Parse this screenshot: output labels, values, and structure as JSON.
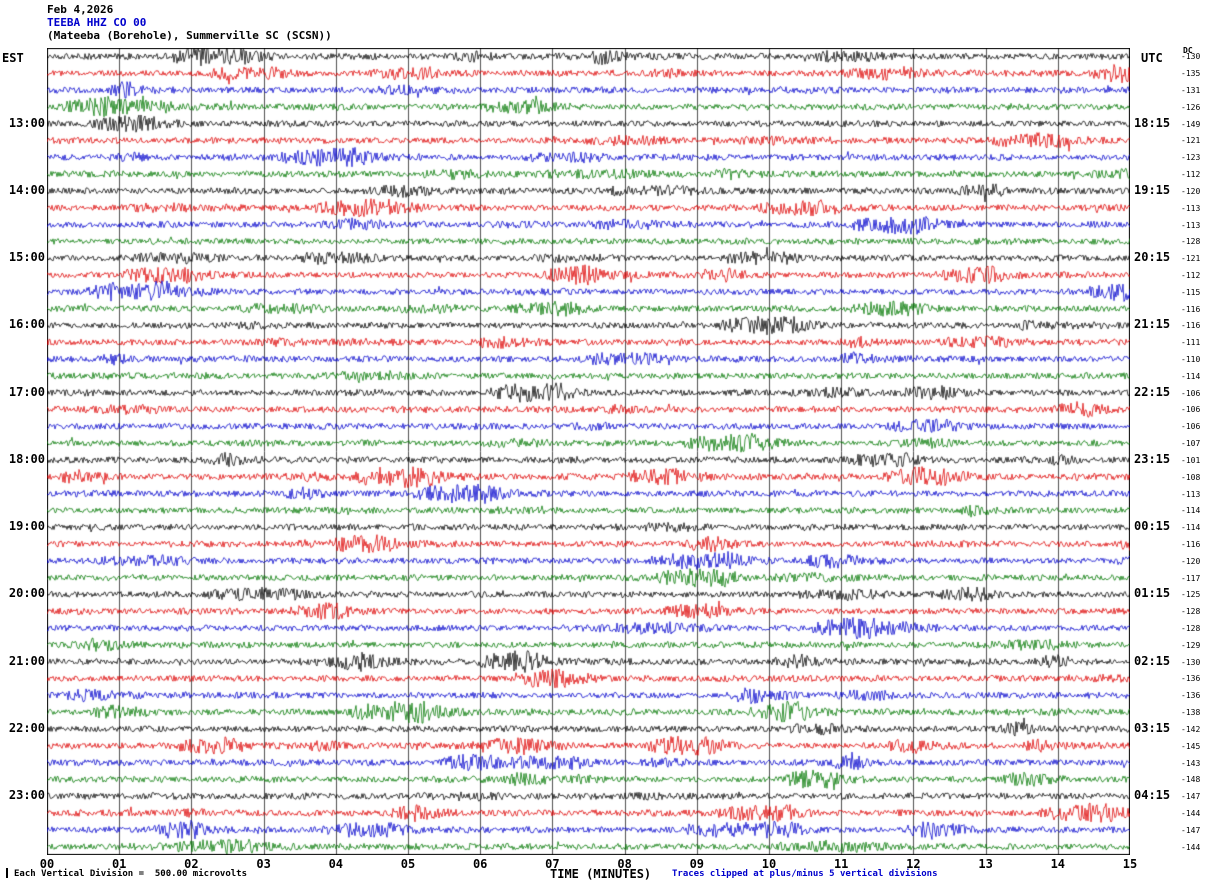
{
  "header": {
    "date": "Feb 4,2026",
    "station_code": "TEEBA HHZ CO 00",
    "station_desc": "(Mateeba (Borehole), Summerville SC (SCSN))"
  },
  "left_axis": {
    "label": "EST"
  },
  "right_axis": {
    "label": "UTC"
  },
  "dc_column": {
    "label": "DC"
  },
  "x_axis": {
    "label": "TIME (MINUTES)"
  },
  "footer": {
    "scale_note": "Each Vertical Division =  500.00 microvolts",
    "clip_note": "Traces clipped at plus/minus 5 vertical divisions"
  },
  "chart_data": {
    "type": "line",
    "subtype": "helicorder-seismogram",
    "title": "TEEBA HHZ CO 00 (Mateeba (Borehole), Summerville SC (SCSN)) - Feb 4,2026",
    "xlabel": "TIME (MINUTES)",
    "x_ticks": [
      "00",
      "01",
      "02",
      "03",
      "04",
      "05",
      "06",
      "07",
      "08",
      "09",
      "10",
      "11",
      "12",
      "13",
      "14",
      "15"
    ],
    "x_range_minutes": [
      0,
      15
    ],
    "rows": 48,
    "traces_per_hour": 4,
    "minutes_per_trace": 15,
    "row_color_cycle": [
      "#000000",
      "#dd0000",
      "#0000cc",
      "#007700"
    ],
    "left_tick_labels_est": [
      "13:00",
      "14:00",
      "15:00",
      "16:00",
      "17:00",
      "18:00",
      "19:00",
      "20:00",
      "21:00",
      "22:00",
      "23:00"
    ],
    "right_tick_labels_utc": [
      "18:15",
      "19:15",
      "20:15",
      "21:15",
      "22:15",
      "23:15",
      "00:15",
      "01:15",
      "02:15",
      "03:15",
      "04:15"
    ],
    "dc_offsets": [
      -130,
      -135,
      -131,
      -126,
      -149,
      -121,
      -123,
      -112,
      -120,
      -113,
      -113,
      -128,
      -121,
      -112,
      -115,
      -116,
      -116,
      -111,
      -110,
      -114,
      -106,
      -106,
      -106,
      -107,
      -101,
      -108,
      -113,
      -114,
      -114,
      -116,
      -120,
      -117,
      -125,
      -128,
      -128,
      -129,
      -130,
      -136,
      -136,
      -138,
      -142,
      -145,
      -143,
      -148,
      -147,
      -144,
      -147,
      -144
    ],
    "clip_divisions": 5,
    "microvolts_per_division": 500.0,
    "grid": "vertical gridline at each minute",
    "content": "continuous seismic background noise traces; no large distinct events"
  }
}
